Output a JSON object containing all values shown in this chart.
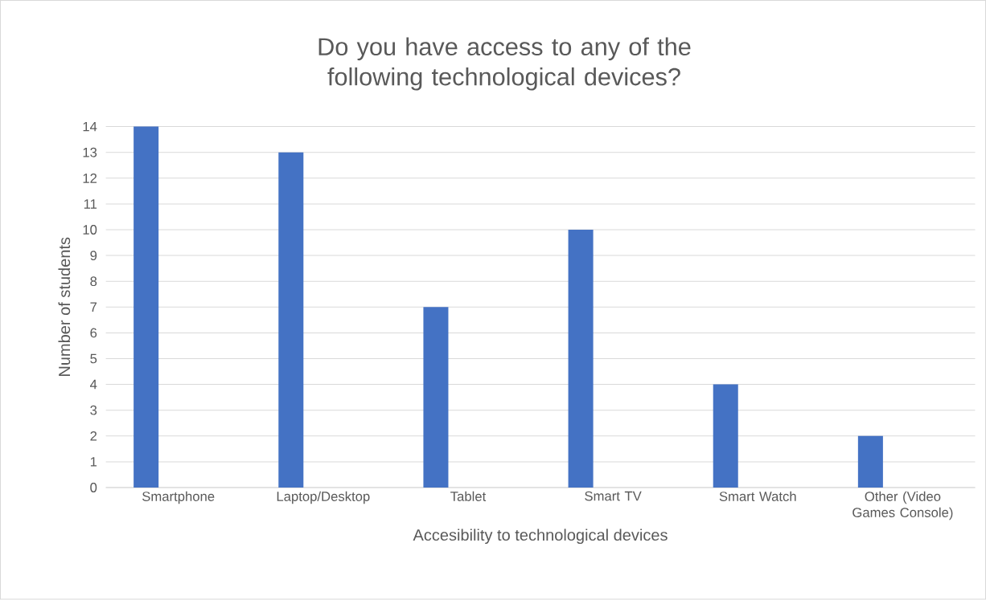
{
  "chart_data": {
    "type": "bar",
    "title": "Do you have access to any of the following technological devices?",
    "xlabel": "Accesibility to technological devices",
    "ylabel": "Number of students",
    "categories": [
      "Smartphone",
      "Laptop/Desktop",
      "Tablet",
      "Smart TV",
      "Smart Watch",
      "Other (Video Games Console)"
    ],
    "values": [
      14,
      13,
      7,
      10,
      4,
      2
    ],
    "color": "#4472c4",
    "ylim": [
      0,
      14
    ],
    "yticks": [
      0,
      1,
      2,
      3,
      4,
      5,
      6,
      7,
      8,
      9,
      10,
      11,
      12,
      13,
      14
    ],
    "grid": "y"
  }
}
